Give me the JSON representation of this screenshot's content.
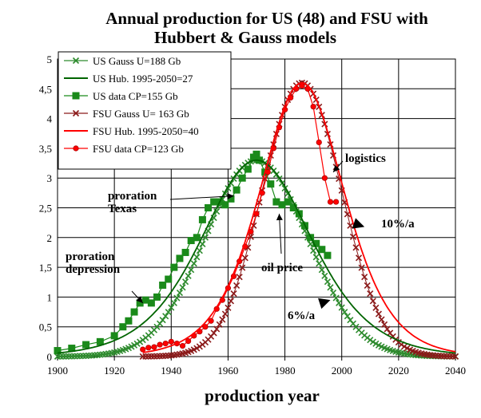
{
  "chart_data": {
    "type": "line",
    "title_lines": [
      "Annual production for US (48) and FSU with",
      "Hubbert & Gauss models"
    ],
    "xlabel": "production year",
    "ylabel": "",
    "xlim": [
      1900,
      2040
    ],
    "ylim": [
      0,
      5
    ],
    "x_ticks": [
      "1900",
      "1920",
      "1940",
      "1960",
      "1980",
      "2000",
      "2020",
      "2040"
    ],
    "y_ticks": [
      "0",
      "0,5",
      "1",
      "1,5",
      "2",
      "2,5",
      "3",
      "3,5",
      "4",
      "4,5",
      "5"
    ],
    "grid": true,
    "legend_position": "top-left",
    "series": [
      {
        "name": "US Gauss U=188 Gb",
        "color": "#2e8b2e",
        "marker": "x",
        "model": "gauss",
        "peak_year": 1970,
        "peak": 3.3,
        "width": 18,
        "start": 1900,
        "end": 2040
      },
      {
        "name": "US Hub.  1995-2050=27",
        "color": "#006400",
        "marker": "none",
        "model": "hubbert",
        "peak_year": 1970,
        "peak": 3.3,
        "width": 13,
        "start": 1900,
        "end": 2040
      },
      {
        "name": "US data  CP=155 Gb",
        "color": "#1a8a1a",
        "marker": "square",
        "model": "data",
        "x": [
          1900,
          1905,
          1910,
          1915,
          1920,
          1923,
          1925,
          1927,
          1929,
          1931,
          1933,
          1935,
          1937,
          1939,
          1941,
          1943,
          1945,
          1947,
          1949,
          1951,
          1953,
          1955,
          1957,
          1959,
          1961,
          1963,
          1965,
          1967,
          1969,
          1970,
          1971,
          1973,
          1975,
          1977,
          1979,
          1981,
          1983,
          1985,
          1987,
          1989,
          1991,
          1993,
          1995
        ],
        "y": [
          0.1,
          0.14,
          0.2,
          0.25,
          0.35,
          0.5,
          0.6,
          0.75,
          0.9,
          0.95,
          0.9,
          1.0,
          1.2,
          1.3,
          1.5,
          1.65,
          1.75,
          1.95,
          2.0,
          2.3,
          2.5,
          2.6,
          2.6,
          2.55,
          2.65,
          2.8,
          3.0,
          3.15,
          3.35,
          3.4,
          3.3,
          3.1,
          2.9,
          2.6,
          2.55,
          2.6,
          2.5,
          2.4,
          2.2,
          2.0,
          1.9,
          1.8,
          1.7
        ]
      },
      {
        "name": "FSU Gauss U= 163 Gb",
        "color": "#8b1a1a",
        "marker": "x",
        "model": "gauss",
        "peak_year": 1986,
        "peak": 4.6,
        "width": 14,
        "start": 1930,
        "end": 2040
      },
      {
        "name": "FSU Hub. 1995-2050=40",
        "color": "#ff0000",
        "marker": "none",
        "model": "hubbert",
        "peak_year": 1986,
        "peak": 4.6,
        "width": 10,
        "start": 1930,
        "end": 2040
      },
      {
        "name": "FSU data CP=123 Gb",
        "color": "#ff0000",
        "marker": "dot",
        "model": "data",
        "x": [
          1930,
          1932,
          1934,
          1936,
          1938,
          1940,
          1942,
          1944,
          1946,
          1948,
          1950,
          1952,
          1954,
          1956,
          1958,
          1960,
          1962,
          1964,
          1966,
          1968,
          1970,
          1972,
          1974,
          1976,
          1978,
          1980,
          1982,
          1984,
          1986,
          1988,
          1990,
          1992,
          1994,
          1996,
          1998
        ],
        "y": [
          0.12,
          0.15,
          0.16,
          0.2,
          0.22,
          0.25,
          0.22,
          0.18,
          0.26,
          0.35,
          0.42,
          0.5,
          0.6,
          0.8,
          0.95,
          1.15,
          1.35,
          1.6,
          1.85,
          2.1,
          2.4,
          2.75,
          3.1,
          3.5,
          3.85,
          4.15,
          4.35,
          4.5,
          4.55,
          4.5,
          4.2,
          3.6,
          3.0,
          2.6,
          2.6
        ]
      }
    ],
    "annotations": [
      {
        "lines": [
          "proration",
          "Texas"
        ],
        "arrow_to": [
          1962,
          2.7
        ]
      },
      {
        "lines": [
          "proration",
          "depression"
        ],
        "arrow_to": [
          1930,
          0.9
        ]
      },
      {
        "lines": [
          "oil price"
        ],
        "arrow_to": [
          1978,
          2.4
        ]
      },
      {
        "lines": [
          "logistics"
        ],
        "arrow_to": [
          1997,
          3.1
        ]
      },
      {
        "lines": [
          "10%/a"
        ],
        "arrow_to": [
          2008,
          2.18
        ]
      },
      {
        "lines": [
          "6%/a"
        ],
        "arrow_to": [
          1996,
          0.95
        ]
      }
    ]
  }
}
